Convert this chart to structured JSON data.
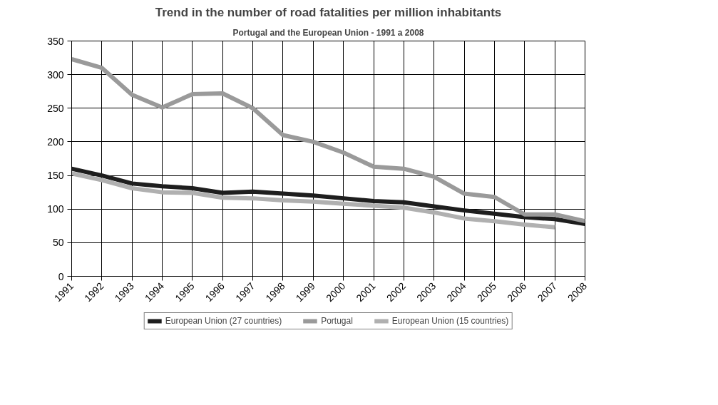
{
  "chart_data": {
    "type": "line",
    "title": "Trend in the number of road fatalities per million inhabitants",
    "subtitle": "Portugal and the European Union - 1991 a 2008",
    "categories": [
      "1991",
      "1992",
      "1993",
      "1994",
      "1995",
      "1996",
      "1997",
      "1998",
      "1999",
      "2000",
      "2001",
      "2002",
      "2003",
      "2004",
      "2005",
      "2006",
      "2007",
      "2008"
    ],
    "series": [
      {
        "name": "European Union (27 countries)",
        "color": "#1e1e1e",
        "values": [
          160,
          150,
          138,
          134,
          131,
          124,
          126,
          123,
          120,
          116,
          112,
          110,
          104,
          98,
          93,
          88,
          85,
          78
        ]
      },
      {
        "name": "Portugal",
        "color": "#9a9a9a",
        "values": [
          323,
          310,
          270,
          251,
          271,
          272,
          250,
          210,
          200,
          184,
          163,
          160,
          148,
          123,
          118,
          92,
          92,
          82
        ]
      },
      {
        "name": "European Union (15 countries)",
        "color": "#b0b0b0",
        "values": [
          153,
          143,
          131,
          125,
          124,
          117,
          116,
          113,
          111,
          108,
          105,
          102,
          95,
          86,
          82,
          77,
          73,
          null
        ]
      }
    ],
    "ylim": [
      0,
      350
    ],
    "yticks": [
      0,
      50,
      100,
      150,
      200,
      250,
      300,
      350
    ],
    "grid": true,
    "legend": "bottom",
    "marker": "none",
    "line_style": "solid"
  }
}
